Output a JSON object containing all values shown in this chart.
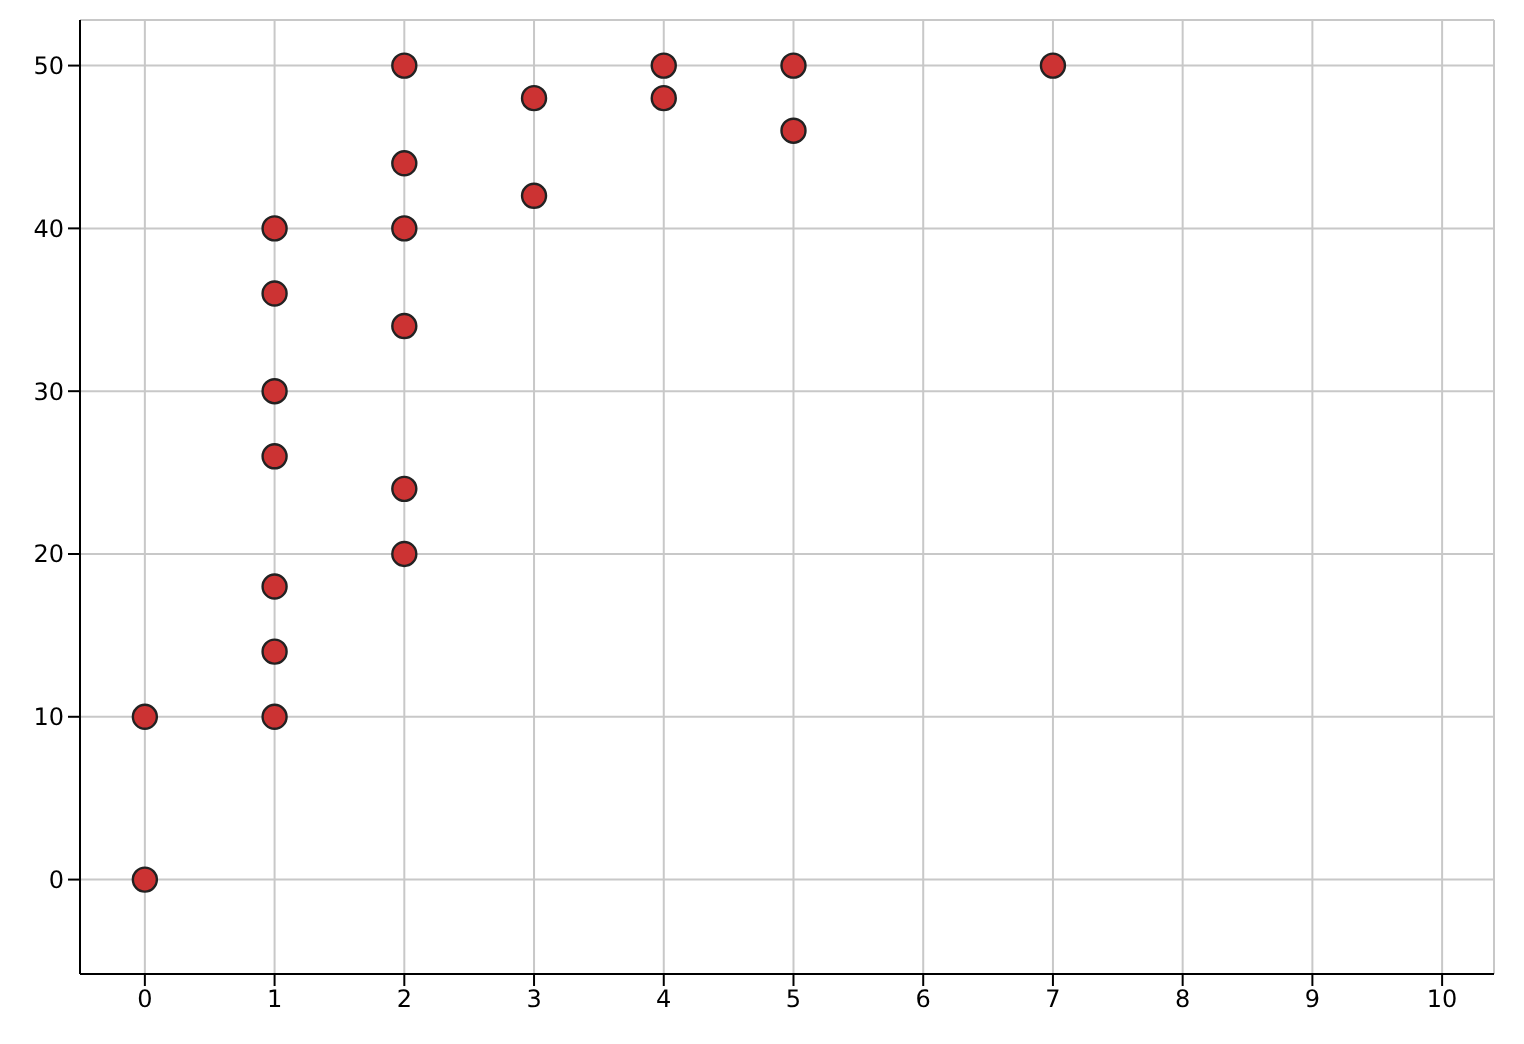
{
  "chart_data": {
    "type": "scatter",
    "x": [
      0,
      0,
      1,
      1,
      1,
      1,
      1,
      1,
      1,
      2,
      2,
      2,
      2,
      2,
      2,
      3,
      3,
      4,
      4,
      5,
      5,
      7
    ],
    "values": [
      0,
      10,
      10,
      14,
      18,
      26,
      30,
      36,
      40,
      20,
      24,
      34,
      40,
      44,
      50,
      42,
      48,
      48,
      50,
      46,
      50,
      50
    ],
    "color": "#cc3333",
    "marker": "circle",
    "xlim": [
      -0.5,
      10.4
    ],
    "ylim": [
      -5.8,
      52.8
    ],
    "xticks": [
      0,
      1,
      2,
      3,
      4,
      5,
      6,
      7,
      8,
      9,
      10
    ],
    "yticks": [
      0,
      10,
      20,
      30,
      40,
      50
    ],
    "grid": true
  }
}
